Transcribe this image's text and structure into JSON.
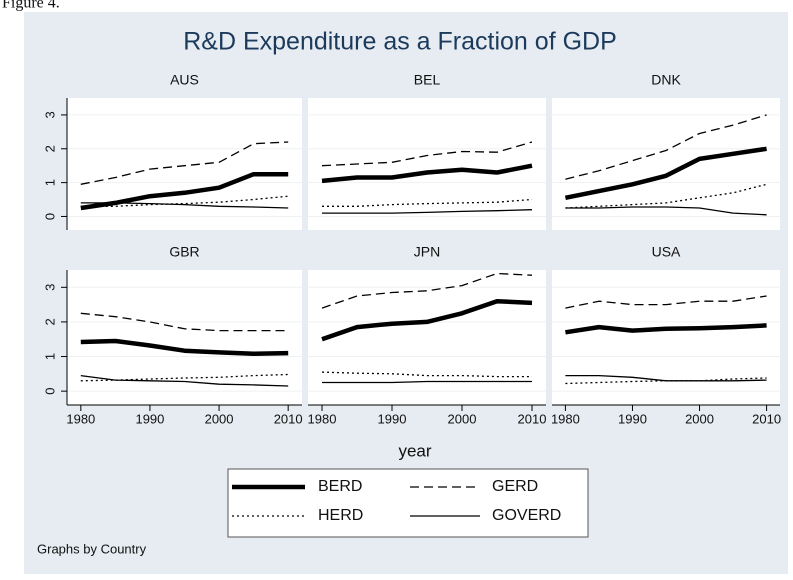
{
  "caption": "Figure 4.",
  "title": "R&D Expenditure as a Fraction of GDP",
  "xlabel": "year",
  "note": "Graphs by Country",
  "chart_data": [
    {
      "type": "line",
      "title": "AUS",
      "x": [
        1980,
        1985,
        1990,
        1995,
        2000,
        2005,
        2010
      ],
      "xlim": [
        1978,
        2012
      ],
      "xticks": [
        1980,
        1990,
        2000,
        2010
      ],
      "ylim": [
        -0.4,
        3.5
      ],
      "yticks": [
        0,
        1,
        2,
        3
      ],
      "grid": true,
      "series": [
        {
          "name": "BERD",
          "color": "#000000",
          "style": "thick",
          "values": [
            0.25,
            0.4,
            0.6,
            0.7,
            0.85,
            1.25,
            1.25
          ]
        },
        {
          "name": "GERD",
          "color": "#000000",
          "style": "dashed",
          "values": [
            0.95,
            1.15,
            1.4,
            1.5,
            1.6,
            2.15,
            2.2
          ]
        },
        {
          "name": "HERD",
          "color": "#000000",
          "style": "dotted",
          "values": [
            0.3,
            0.3,
            0.35,
            0.38,
            0.42,
            0.5,
            0.6
          ]
        },
        {
          "name": "GOVERD",
          "color": "#000000",
          "style": "solid",
          "values": [
            0.4,
            0.4,
            0.38,
            0.35,
            0.3,
            0.28,
            0.25
          ]
        }
      ]
    },
    {
      "type": "line",
      "title": "BEL",
      "x": [
        1980,
        1985,
        1990,
        1995,
        2000,
        2005,
        2010
      ],
      "xlim": [
        1978,
        2012
      ],
      "xticks": [
        1980,
        1990,
        2000,
        2010
      ],
      "ylim": [
        -0.4,
        3.5
      ],
      "yticks": [
        0,
        1,
        2,
        3
      ],
      "grid": true,
      "series": [
        {
          "name": "BERD",
          "color": "#000000",
          "style": "thick",
          "values": [
            1.05,
            1.15,
            1.15,
            1.3,
            1.38,
            1.3,
            1.5
          ]
        },
        {
          "name": "GERD",
          "color": "#000000",
          "style": "dashed",
          "values": [
            1.5,
            1.55,
            1.6,
            1.8,
            1.92,
            1.9,
            2.2
          ]
        },
        {
          "name": "HERD",
          "color": "#000000",
          "style": "dotted",
          "values": [
            0.3,
            0.3,
            0.35,
            0.38,
            0.4,
            0.42,
            0.5
          ]
        },
        {
          "name": "GOVERD",
          "color": "#000000",
          "style": "solid",
          "values": [
            0.1,
            0.1,
            0.1,
            0.12,
            0.15,
            0.17,
            0.2
          ]
        }
      ]
    },
    {
      "type": "line",
      "title": "DNK",
      "x": [
        1980,
        1985,
        1990,
        1995,
        2000,
        2005,
        2010
      ],
      "xlim": [
        1978,
        2012
      ],
      "xticks": [
        1980,
        1990,
        2000,
        2010
      ],
      "ylim": [
        -0.4,
        3.5
      ],
      "yticks": [
        0,
        1,
        2,
        3
      ],
      "grid": true,
      "series": [
        {
          "name": "BERD",
          "color": "#000000",
          "style": "thick",
          "values": [
            0.55,
            0.75,
            0.95,
            1.2,
            1.7,
            1.85,
            2.0
          ]
        },
        {
          "name": "GERD",
          "color": "#000000",
          "style": "dashed",
          "values": [
            1.1,
            1.35,
            1.65,
            1.95,
            2.45,
            2.7,
            3.0
          ]
        },
        {
          "name": "HERD",
          "color": "#000000",
          "style": "dotted",
          "values": [
            0.25,
            0.3,
            0.35,
            0.4,
            0.55,
            0.7,
            0.95
          ]
        },
        {
          "name": "GOVERD",
          "color": "#000000",
          "style": "solid",
          "values": [
            0.25,
            0.25,
            0.28,
            0.28,
            0.25,
            0.1,
            0.05
          ]
        }
      ]
    },
    {
      "type": "line",
      "title": "GBR",
      "x": [
        1980,
        1985,
        1990,
        1995,
        2000,
        2005,
        2010
      ],
      "xlim": [
        1978,
        2012
      ],
      "xticks": [
        1980,
        1990,
        2000,
        2010
      ],
      "ylim": [
        -0.4,
        3.5
      ],
      "yticks": [
        0,
        1,
        2,
        3
      ],
      "grid": true,
      "series": [
        {
          "name": "BERD",
          "color": "#000000",
          "style": "thick",
          "values": [
            1.42,
            1.45,
            1.32,
            1.17,
            1.12,
            1.08,
            1.1
          ]
        },
        {
          "name": "GERD",
          "color": "#000000",
          "style": "dashed",
          "values": [
            2.25,
            2.15,
            2.0,
            1.8,
            1.75,
            1.75,
            1.75
          ]
        },
        {
          "name": "HERD",
          "color": "#000000",
          "style": "dotted",
          "values": [
            0.3,
            0.32,
            0.35,
            0.38,
            0.4,
            0.45,
            0.48
          ]
        },
        {
          "name": "GOVERD",
          "color": "#000000",
          "style": "solid",
          "values": [
            0.45,
            0.32,
            0.3,
            0.28,
            0.2,
            0.18,
            0.15
          ]
        }
      ]
    },
    {
      "type": "line",
      "title": "JPN",
      "x": [
        1980,
        1985,
        1990,
        1995,
        2000,
        2005,
        2010
      ],
      "xlim": [
        1978,
        2012
      ],
      "xticks": [
        1980,
        1990,
        2000,
        2010
      ],
      "ylim": [
        -0.4,
        3.5
      ],
      "yticks": [
        0,
        1,
        2,
        3
      ],
      "grid": true,
      "series": [
        {
          "name": "BERD",
          "color": "#000000",
          "style": "thick",
          "values": [
            1.5,
            1.85,
            1.95,
            2.0,
            2.25,
            2.6,
            2.55
          ]
        },
        {
          "name": "GERD",
          "color": "#000000",
          "style": "dashed",
          "values": [
            2.4,
            2.75,
            2.85,
            2.9,
            3.05,
            3.4,
            3.35
          ]
        },
        {
          "name": "HERD",
          "color": "#000000",
          "style": "dotted",
          "values": [
            0.55,
            0.52,
            0.5,
            0.45,
            0.45,
            0.42,
            0.42
          ]
        },
        {
          "name": "GOVERD",
          "color": "#000000",
          "style": "solid",
          "values": [
            0.25,
            0.25,
            0.25,
            0.28,
            0.28,
            0.28,
            0.28
          ]
        }
      ]
    },
    {
      "type": "line",
      "title": "USA",
      "x": [
        1980,
        1985,
        1990,
        1995,
        2000,
        2005,
        2010
      ],
      "xlim": [
        1978,
        2012
      ],
      "xticks": [
        1980,
        1990,
        2000,
        2010
      ],
      "ylim": [
        -0.4,
        3.5
      ],
      "yticks": [
        0,
        1,
        2,
        3
      ],
      "grid": true,
      "series": [
        {
          "name": "BERD",
          "color": "#000000",
          "style": "thick",
          "values": [
            1.7,
            1.85,
            1.75,
            1.8,
            1.82,
            1.85,
            1.9
          ]
        },
        {
          "name": "GERD",
          "color": "#000000",
          "style": "dashed",
          "values": [
            2.4,
            2.6,
            2.5,
            2.5,
            2.6,
            2.6,
            2.75
          ]
        },
        {
          "name": "HERD",
          "color": "#000000",
          "style": "dotted",
          "values": [
            0.22,
            0.25,
            0.28,
            0.3,
            0.3,
            0.35,
            0.38
          ]
        },
        {
          "name": "GOVERD",
          "color": "#000000",
          "style": "solid",
          "values": [
            0.45,
            0.45,
            0.4,
            0.3,
            0.3,
            0.3,
            0.32
          ]
        }
      ]
    }
  ]
}
